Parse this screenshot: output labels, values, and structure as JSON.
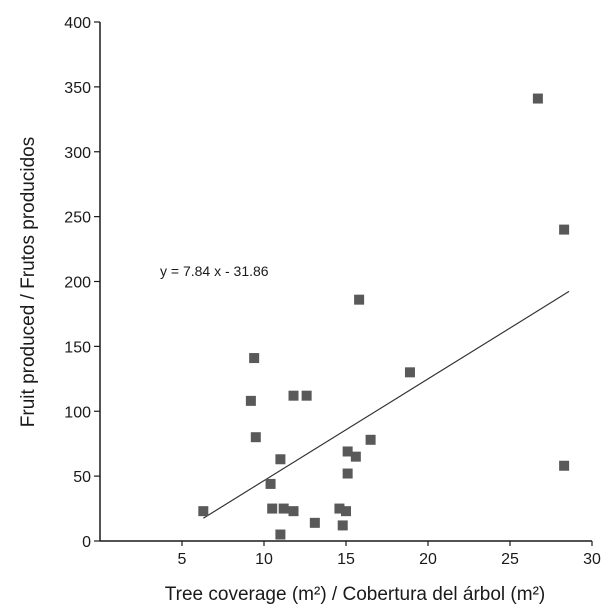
{
  "chart_data": {
    "type": "scatter",
    "title": "",
    "xlabel": "Tree coverage (m²) / Cobertura del árbol (m²)",
    "ylabel": "Fruit produced / Frutos producidos",
    "xlim": [
      0,
      30
    ],
    "ylim": [
      0,
      400
    ],
    "x_ticks": [
      5,
      10,
      15,
      20,
      25,
      30
    ],
    "x_tick_labels": [
      "5",
      "10",
      "15",
      "20",
      "25",
      "30"
    ],
    "y_ticks": [
      0,
      50,
      100,
      150,
      200,
      250,
      300,
      350,
      400
    ],
    "y_tick_labels": [
      "0",
      "50",
      "100",
      "150",
      "200",
      "250",
      "300",
      "350",
      "400"
    ],
    "grid": false,
    "marker_color": "#595959",
    "line_color": "#333333",
    "points": [
      {
        "x": 6.3,
        "y": 23
      },
      {
        "x": 9.2,
        "y": 108
      },
      {
        "x": 9.4,
        "y": 141
      },
      {
        "x": 9.5,
        "y": 80
      },
      {
        "x": 10.4,
        "y": 44
      },
      {
        "x": 10.5,
        "y": 25
      },
      {
        "x": 11.0,
        "y": 63
      },
      {
        "x": 11.0,
        "y": 5
      },
      {
        "x": 11.2,
        "y": 25
      },
      {
        "x": 11.8,
        "y": 112
      },
      {
        "x": 11.8,
        "y": 23
      },
      {
        "x": 12.6,
        "y": 112
      },
      {
        "x": 13.1,
        "y": 14
      },
      {
        "x": 14.6,
        "y": 25
      },
      {
        "x": 14.8,
        "y": 12
      },
      {
        "x": 15.0,
        "y": 23
      },
      {
        "x": 15.1,
        "y": 69
      },
      {
        "x": 15.1,
        "y": 52
      },
      {
        "x": 15.6,
        "y": 65
      },
      {
        "x": 15.8,
        "y": 186
      },
      {
        "x": 16.5,
        "y": 78
      },
      {
        "x": 18.9,
        "y": 130
      },
      {
        "x": 26.7,
        "y": 341
      },
      {
        "x": 28.3,
        "y": 240
      },
      {
        "x": 28.3,
        "y": 58
      }
    ],
    "trendline": {
      "equation": "y = 7.84 x - 31.86",
      "slope": 7.84,
      "intercept": -31.86,
      "x_range": [
        6.3,
        28.6
      ]
    }
  }
}
